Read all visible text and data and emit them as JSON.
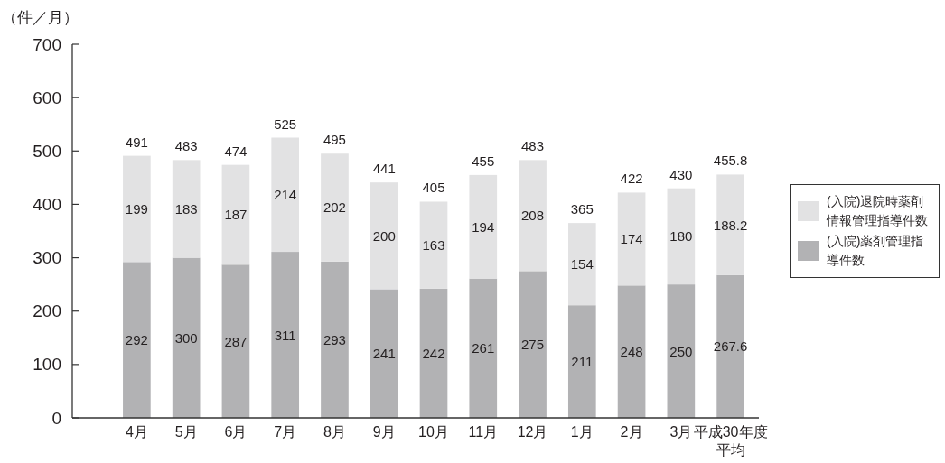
{
  "chart_data": {
    "type": "bar",
    "stacked": true,
    "ylabel": "（件／月）",
    "categories": [
      "4月",
      "5月",
      "6月",
      "7月",
      "8月",
      "9月",
      "10月",
      "11月",
      "12月",
      "1月",
      "2月",
      "3月",
      "平成30年度平均"
    ],
    "series": [
      {
        "name": "(入院)薬剤管理指導件数",
        "color": "#b2b2b4",
        "values": [
          292,
          300,
          287,
          311,
          293,
          241,
          242,
          261,
          275,
          211,
          248,
          250,
          267.6
        ]
      },
      {
        "name": "(入院)退院時薬剤情報管理指導件数",
        "color": "#e2e2e3",
        "values": [
          199,
          183,
          187,
          214,
          202,
          200,
          163,
          194,
          208,
          154,
          174,
          180,
          188.2
        ]
      }
    ],
    "totals": [
      "491",
      "483",
      "474",
      "525",
      "495",
      "441",
      "405",
      "455",
      "483",
      "365",
      "422",
      "430",
      "455.8"
    ],
    "data_labels": true,
    "legend": "right",
    "ylim": [
      0,
      700
    ],
    "yticks": [
      0,
      100,
      200,
      300,
      400,
      500,
      600,
      700
    ]
  }
}
